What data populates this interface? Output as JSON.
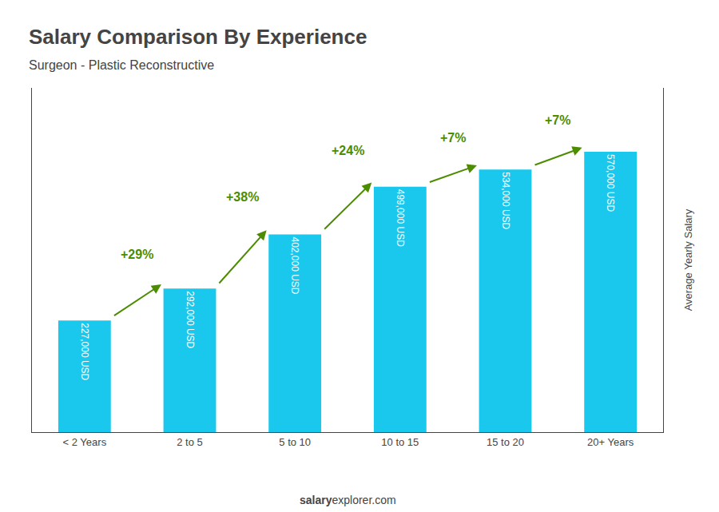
{
  "chart_data": {
    "type": "bar",
    "title": "Salary Comparison By Experience",
    "subtitle": "Surgeon - Plastic Reconstructive",
    "categories": [
      "< 2 Years",
      "2 to 5",
      "5 to 10",
      "10 to 15",
      "15 to 20",
      "20+ Years"
    ],
    "values": [
      227000,
      292000,
      402000,
      499000,
      534000,
      570000
    ],
    "value_labels": [
      "227,000 USD",
      "292,000 USD",
      "402,000 USD",
      "499,000 USD",
      "534,000 USD",
      "570,000 USD"
    ],
    "data_labels": true,
    "annotations": [
      "+29%",
      "+38%",
      "+24%",
      "+7%",
      "+7%"
    ],
    "ylabel": "Average Yearly Salary",
    "watermark": [
      "salary",
      "explorer.com"
    ],
    "color": "#1AC8ED",
    "ylim": [
      0,
      700000
    ],
    "yticks": [],
    "tick_labels": "x",
    "grid": false
  }
}
